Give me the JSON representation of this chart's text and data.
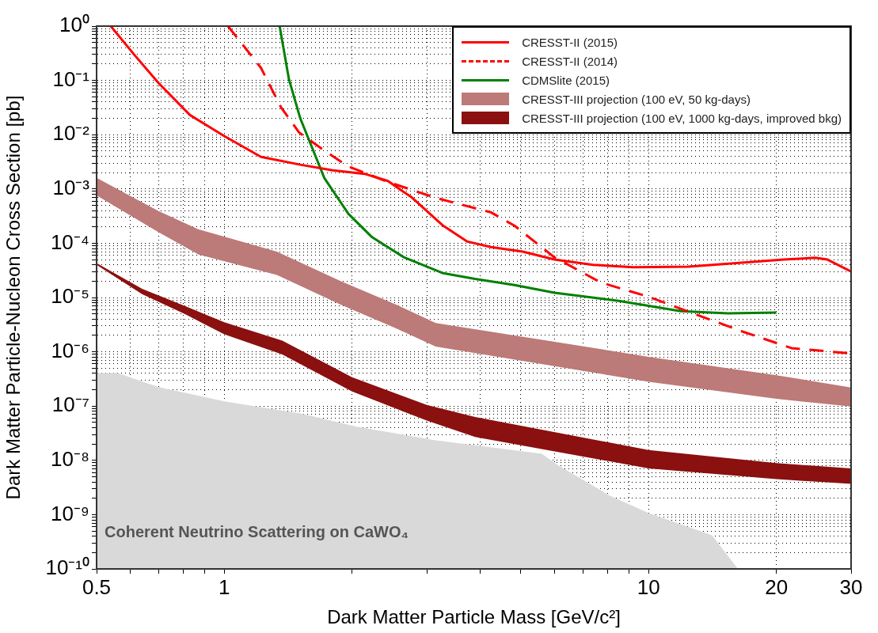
{
  "chart_data": {
    "type": "line",
    "xlabel": "Dark Matter Particle Mass [GeV/c²]",
    "ylabel": "Dark Matter Particle-Nucleon Cross Section [pb]",
    "log": "xy",
    "grid": true,
    "legend": "top right",
    "marker": "none",
    "xlim": [
      0.5,
      30
    ],
    "ylim": [
      1e-10,
      1
    ],
    "xticks": [
      0.5,
      {
        "value": 0.6,
        "label": null
      },
      {
        "value": 0.7,
        "label": null
      },
      {
        "value": 0.8,
        "label": null
      },
      {
        "value": 0.9,
        "label": null
      },
      1,
      {
        "value": 2,
        "label": null
      },
      {
        "value": 3,
        "label": null
      },
      {
        "value": 4,
        "label": null
      },
      {
        "value": 5,
        "label": null
      },
      {
        "value": 6,
        "label": null
      },
      {
        "value": 7,
        "label": null
      },
      {
        "value": 8,
        "label": null
      },
      {
        "value": 9,
        "label": null
      },
      10,
      20,
      30
    ],
    "yticks": [
      {
        "value": 1e-10,
        "label": "10⁻¹⁰"
      },
      {
        "value": 2e-10,
        "label": null
      },
      {
        "value": 3e-10,
        "label": null
      },
      {
        "value": 4e-10,
        "label": null
      },
      {
        "value": 5e-10,
        "label": null
      },
      {
        "value": 6e-10,
        "label": null
      },
      {
        "value": 7e-10,
        "label": null
      },
      {
        "value": 8e-10,
        "label": null
      },
      {
        "value": 9e-10,
        "label": null
      },
      {
        "value": 1e-09,
        "label": "10⁻⁹"
      },
      {
        "value": 2e-09,
        "label": null
      },
      {
        "value": 3e-09,
        "label": null
      },
      {
        "value": 4e-09,
        "label": null
      },
      {
        "value": 5e-09,
        "label": null
      },
      {
        "value": 6e-09,
        "label": null
      },
      {
        "value": 7e-09,
        "label": null
      },
      {
        "value": 8e-09,
        "label": null
      },
      {
        "value": 9e-09,
        "label": null
      },
      {
        "value": 1e-08,
        "label": "10⁻⁸"
      },
      {
        "value": 2e-08,
        "label": null
      },
      {
        "value": 3e-08,
        "label": null
      },
      {
        "value": 4e-08,
        "label": null
      },
      {
        "value": 5e-08,
        "label": null
      },
      {
        "value": 6e-08,
        "label": null
      },
      {
        "value": 7e-08,
        "label": null
      },
      {
        "value": 8e-08,
        "label": null
      },
      {
        "value": 9e-08,
        "label": null
      },
      {
        "value": 1e-07,
        "label": "10⁻⁷"
      },
      {
        "value": 2e-07,
        "label": null
      },
      {
        "value": 3e-07,
        "label": null
      },
      {
        "value": 4e-07,
        "label": null
      },
      {
        "value": 5e-07,
        "label": null
      },
      {
        "value": 6e-07,
        "label": null
      },
      {
        "value": 7e-07,
        "label": null
      },
      {
        "value": 8e-07,
        "label": null
      },
      {
        "value": 9e-07,
        "label": null
      },
      {
        "value": 1e-06,
        "label": "10⁻⁶"
      },
      {
        "value": 2e-06,
        "label": null
      },
      {
        "value": 3e-06,
        "label": null
      },
      {
        "value": 4e-06,
        "label": null
      },
      {
        "value": 5e-06,
        "label": null
      },
      {
        "value": 6e-06,
        "label": null
      },
      {
        "value": 7e-06,
        "label": null
      },
      {
        "value": 8e-06,
        "label": null
      },
      {
        "value": 9e-06,
        "label": null
      },
      {
        "value": 1e-05,
        "label": "10⁻⁵"
      },
      {
        "value": 2e-05,
        "label": null
      },
      {
        "value": 3e-05,
        "label": null
      },
      {
        "value": 4e-05,
        "label": null
      },
      {
        "value": 5e-05,
        "label": null
      },
      {
        "value": 6e-05,
        "label": null
      },
      {
        "value": 7e-05,
        "label": null
      },
      {
        "value": 8e-05,
        "label": null
      },
      {
        "value": 9e-05,
        "label": null
      },
      {
        "value": 0.0001,
        "label": "10⁻⁴"
      },
      {
        "value": 0.0002,
        "label": null
      },
      {
        "value": 0.0003,
        "label": null
      },
      {
        "value": 0.0004,
        "label": null
      },
      {
        "value": 0.0005,
        "label": null
      },
      {
        "value": 0.0006,
        "label": null
      },
      {
        "value": 0.0007,
        "label": null
      },
      {
        "value": 0.0008,
        "label": null
      },
      {
        "value": 0.0009,
        "label": null
      },
      {
        "value": 0.001,
        "label": "10⁻³"
      },
      {
        "value": 0.002,
        "label": null
      },
      {
        "value": 0.003,
        "label": null
      },
      {
        "value": 0.004,
        "label": null
      },
      {
        "value": 0.005,
        "label": null
      },
      {
        "value": 0.006,
        "label": null
      },
      {
        "value": 0.007,
        "label": null
      },
      {
        "value": 0.008,
        "label": null
      },
      {
        "value": 0.009,
        "label": null
      },
      {
        "value": 0.01,
        "label": "10⁻²"
      },
      {
        "value": 0.02,
        "label": null
      },
      {
        "value": 0.03,
        "label": null
      },
      {
        "value": 0.04,
        "label": null
      },
      {
        "value": 0.05,
        "label": null
      },
      {
        "value": 0.06,
        "label": null
      },
      {
        "value": 0.07,
        "label": null
      },
      {
        "value": 0.08,
        "label": null
      },
      {
        "value": 0.09,
        "label": null
      },
      {
        "value": 0.1,
        "label": "10⁻¹"
      },
      {
        "value": 0.2,
        "label": null
      },
      {
        "value": 0.3,
        "label": null
      },
      {
        "value": 0.4,
        "label": null
      },
      {
        "value": 0.5,
        "label": null
      },
      {
        "value": 0.6,
        "label": null
      },
      {
        "value": 0.7,
        "label": null
      },
      {
        "value": 0.8,
        "label": null
      },
      {
        "value": 0.9,
        "label": null
      },
      {
        "value": 1,
        "label": "10⁰"
      }
    ],
    "series": [
      {
        "name": "CRESST-II (2015)",
        "type": "line",
        "color": "#ff0000",
        "line_style": "solid",
        "x": [
          0.54,
          0.615,
          0.7,
          0.83,
          1,
          1.22,
          1.51,
          1.8,
          2.14,
          2.43,
          2.77,
          3.28,
          3.73,
          4.25,
          5.05,
          6.0,
          7.4,
          9.2,
          12.4,
          16.1,
          20.8,
          24.7,
          26.4,
          30
        ],
        "values": [
          1,
          0.29,
          0.089,
          0.023,
          0.0094,
          0.0039,
          0.0028,
          0.0022,
          0.0019,
          0.0014,
          0.00069,
          0.00021,
          0.000108,
          8.5e-05,
          7e-05,
          5e-05,
          4e-05,
          3.6e-05,
          3.7e-05,
          4.3e-05,
          5e-05,
          5.4e-05,
          5e-05,
          3e-05
        ]
      },
      {
        "name": "CRESST-II (2014)",
        "type": "line",
        "color": "#ff0000",
        "line_style": "dashed",
        "x": [
          1.02,
          1.22,
          1.36,
          1.5,
          1.72,
          1.96,
          2.43,
          3.14,
          4.25,
          4.83,
          6.0,
          7.7,
          10,
          13,
          16.8,
          21.7,
          30
        ],
        "values": [
          1,
          0.17,
          0.032,
          0.011,
          0.0051,
          0.0026,
          0.00135,
          0.00069,
          0.00037,
          0.00021,
          5.5e-05,
          1.9e-05,
          1.03e-05,
          4.8e-06,
          2.3e-06,
          1.17e-06,
          9.3e-07
        ]
      },
      {
        "name": "CDMSlite (2015)",
        "type": "line",
        "color": "#008000",
        "line_style": "solid",
        "x": [
          1.35,
          1.42,
          1.51,
          1.72,
          1.96,
          2.23,
          2.65,
          3.28,
          3.9,
          4.83,
          6.0,
          8.5,
          11.9,
          15.4,
          20
        ],
        "values": [
          1,
          0.105,
          0.02,
          0.0016,
          0.00035,
          0.000129,
          5.5e-05,
          2.8e-05,
          2.2e-05,
          1.7e-05,
          1.22e-05,
          8.7e-06,
          5.6e-06,
          5.1e-06,
          5.3e-06
        ]
      },
      {
        "name": "CRESST-III projection (100 eV, 50 kg-days)",
        "type": "area",
        "color": "#bc7a78",
        "x": [
          0.5,
          0.7,
          0.87,
          1.33,
          1.88,
          2.54,
          3.15,
          10,
          20,
          30
        ],
        "values": [
          null,
          null,
          null,
          null,
          null,
          null,
          null,
          null,
          null,
          null
        ],
        "lower": [
          0.00076,
          0.00016,
          6.2e-05,
          2.6e-05,
          7.4e-06,
          2.7e-06,
          1.25e-06,
          2.8e-07,
          1.36e-07,
          9.8e-08
        ],
        "upper": [
          0.0016,
          0.00039,
          0.00018,
          7e-05,
          2e-05,
          7.4e-06,
          3.4e-06,
          8.1e-07,
          3.7e-07,
          2.2e-07
        ]
      },
      {
        "name": "CRESST-III projection (100 eV, 1000 kg-days, improved bkg)",
        "type": "area",
        "color": "#8b1010",
        "x": [
          0.5,
          0.64,
          0.81,
          1,
          1.37,
          2,
          3,
          3.9,
          10,
          20,
          30
        ],
        "values": [
          null,
          null,
          null,
          null,
          null,
          null,
          null,
          null,
          null,
          null,
          null
        ],
        "lower": [
          4e-05,
          1.15e-05,
          4.9e-06,
          2.1e-06,
          8.9e-07,
          1.86e-07,
          5.4e-08,
          2.7e-08,
          7.1e-09,
          4.5e-09,
          3.7e-09
        ],
        "upper": [
          4.3e-05,
          1.45e-05,
          6.9e-06,
          3.5e-06,
          1.6e-06,
          3.4e-07,
          1.05e-07,
          6.3e-08,
          1.55e-08,
          8.9e-09,
          7.1e-09
        ]
      },
      {
        "type": "area",
        "color": "#d9d9d9",
        "x": [
          0.5,
          0.56,
          0.7,
          1,
          1.51,
          2.05,
          3.15,
          5.6,
          6.1,
          8.1,
          10,
          14.1,
          16.2
        ],
        "values": [
          4e-07,
          4e-07,
          2.2e-07,
          1.2e-07,
          7.2e-08,
          4.1e-08,
          2.3e-08,
          1.3e-08,
          8.1e-09,
          2.2e-09,
          1.05e-09,
          4.1e-10,
          1e-10
        ]
      }
    ],
    "annotations": [
      "Coherent Neutrino Scattering on CaWO₄"
    ]
  }
}
